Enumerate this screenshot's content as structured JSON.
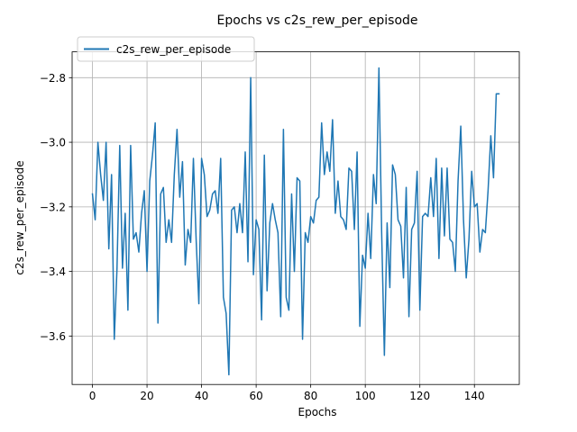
{
  "chart_data": {
    "type": "line",
    "title": "Epochs vs c2s_rew_per_episode",
    "xlabel": "Epochs",
    "ylabel": "c2s_rew_per_episode",
    "xlim": [
      -7.45,
      156.45
    ],
    "ylim": [
      -3.75,
      -2.72
    ],
    "xticks": [
      0,
      20,
      40,
      60,
      80,
      100,
      120,
      140
    ],
    "xtick_labels": [
      "0",
      "20",
      "40",
      "60",
      "80",
      "100",
      "120",
      "140"
    ],
    "yticks": [
      -3.6,
      -3.4,
      -3.2,
      -3.0,
      -2.8
    ],
    "ytick_labels": [
      "−3.6",
      "−3.4",
      "−3.2",
      "−3.0",
      "−2.8"
    ],
    "grid": true,
    "legend_position": "upper-left",
    "series": [
      {
        "name": "c2s_rew_per_episode",
        "color": "#1f77b4",
        "x": [
          0,
          1,
          2,
          3,
          4,
          5,
          6,
          7,
          8,
          9,
          10,
          11,
          12,
          13,
          14,
          15,
          16,
          17,
          18,
          19,
          20,
          21,
          22,
          23,
          24,
          25,
          26,
          27,
          28,
          29,
          30,
          31,
          32,
          33,
          34,
          35,
          36,
          37,
          38,
          39,
          40,
          41,
          42,
          43,
          44,
          45,
          46,
          47,
          48,
          49,
          50,
          51,
          52,
          53,
          54,
          55,
          56,
          57,
          58,
          59,
          60,
          61,
          62,
          63,
          64,
          65,
          66,
          67,
          68,
          69,
          70,
          71,
          72,
          73,
          74,
          75,
          76,
          77,
          78,
          79,
          80,
          81,
          82,
          83,
          84,
          85,
          86,
          87,
          88,
          89,
          90,
          91,
          92,
          93,
          94,
          95,
          96,
          97,
          98,
          99,
          100,
          101,
          102,
          103,
          104,
          105,
          106,
          107,
          108,
          109,
          110,
          111,
          112,
          113,
          114,
          115,
          116,
          117,
          118,
          119,
          120,
          121,
          122,
          123,
          124,
          125,
          126,
          127,
          128,
          129,
          130,
          131,
          132,
          133,
          134,
          135,
          136,
          137,
          138,
          139,
          140,
          141,
          142,
          143,
          144,
          145,
          146,
          147,
          148,
          149
        ],
        "y": [
          -3.16,
          -3.24,
          -3.0,
          -3.1,
          -3.18,
          -3.0,
          -3.33,
          -3.1,
          -3.61,
          -3.39,
          -3.01,
          -3.39,
          -3.22,
          -3.52,
          -3.01,
          -3.3,
          -3.28,
          -3.34,
          -3.22,
          -3.15,
          -3.4,
          -3.12,
          -3.04,
          -2.94,
          -3.56,
          -3.16,
          -3.14,
          -3.31,
          -3.24,
          -3.31,
          -3.1,
          -2.96,
          -3.17,
          -3.06,
          -3.38,
          -3.27,
          -3.31,
          -3.05,
          -3.3,
          -3.5,
          -3.05,
          -3.1,
          -3.23,
          -3.21,
          -3.16,
          -3.15,
          -3.22,
          -3.05,
          -3.48,
          -3.53,
          -3.72,
          -3.21,
          -3.2,
          -3.28,
          -3.19,
          -3.28,
          -3.03,
          -3.37,
          -2.8,
          -3.41,
          -3.24,
          -3.27,
          -3.55,
          -3.04,
          -3.46,
          -3.25,
          -3.19,
          -3.24,
          -3.28,
          -3.54,
          -2.96,
          -3.48,
          -3.52,
          -3.16,
          -3.4,
          -3.11,
          -3.12,
          -3.61,
          -3.28,
          -3.31,
          -3.23,
          -3.25,
          -3.18,
          -3.17,
          -2.94,
          -3.1,
          -3.03,
          -3.09,
          -2.93,
          -3.22,
          -3.12,
          -3.23,
          -3.24,
          -3.27,
          -3.08,
          -3.09,
          -3.27,
          -3.03,
          -3.57,
          -3.35,
          -3.39,
          -3.22,
          -3.36,
          -3.1,
          -3.19,
          -2.77,
          -3.28,
          -3.66,
          -3.25,
          -3.45,
          -3.07,
          -3.1,
          -3.24,
          -3.26,
          -3.42,
          -3.14,
          -3.54,
          -3.27,
          -3.25,
          -3.09,
          -3.52,
          -3.23,
          -3.22,
          -3.23,
          -3.11,
          -3.23,
          -3.05,
          -3.36,
          -3.08,
          -3.29,
          -3.08,
          -3.3,
          -3.31,
          -3.4,
          -3.12,
          -2.95,
          -3.24,
          -3.42,
          -3.3,
          -3.09,
          -3.2,
          -3.19,
          -3.34,
          -3.27,
          -3.28,
          -3.15,
          -2.98,
          -3.11,
          -2.85,
          -2.85
        ]
      }
    ]
  }
}
